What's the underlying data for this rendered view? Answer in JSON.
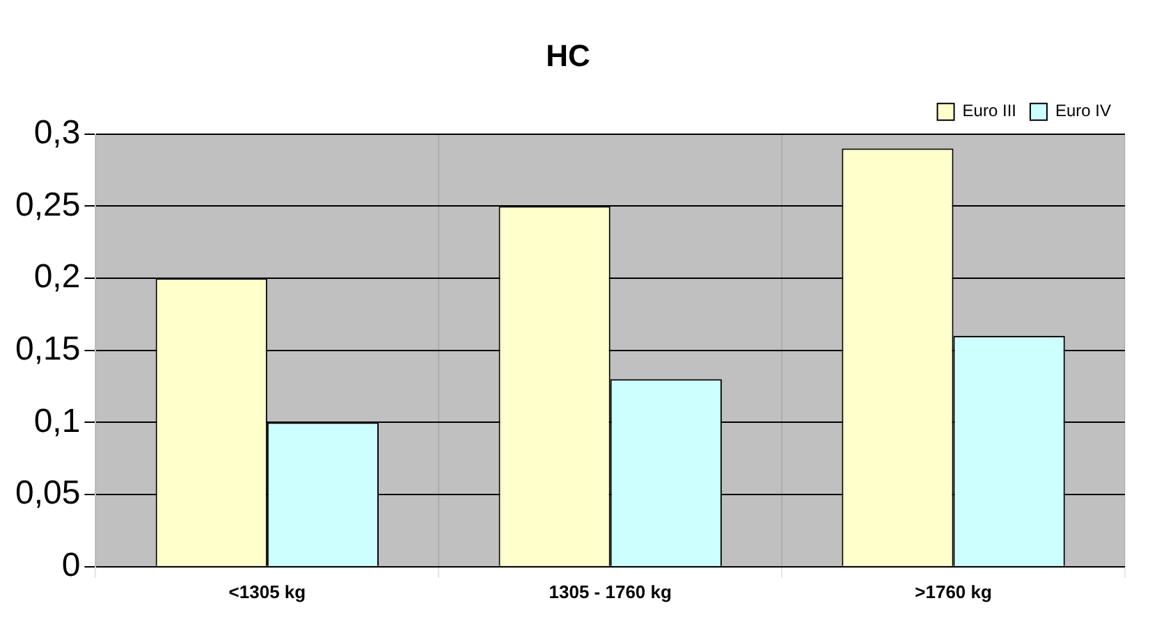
{
  "chart_data": {
    "type": "bar",
    "title": "HC",
    "categories": [
      "<1305 kg",
      "1305 - 1760 kg",
      ">1760 kg"
    ],
    "series": [
      {
        "name": "Euro III",
        "color": "#ffffcc",
        "values": [
          0.2,
          0.25,
          0.29
        ]
      },
      {
        "name": "Euro IV",
        "color": "#ccffff",
        "values": [
          0.1,
          0.13,
          0.16
        ]
      }
    ],
    "ylim": [
      0,
      0.3
    ],
    "yticks": [
      {
        "value": 0,
        "label": "0"
      },
      {
        "value": 0.05,
        "label": "0,05"
      },
      {
        "value": 0.1,
        "label": "0,1"
      },
      {
        "value": 0.15,
        "label": "0,15"
      },
      {
        "value": 0.2,
        "label": "0,2"
      },
      {
        "value": 0.25,
        "label": "0,25"
      },
      {
        "value": 0.3,
        "label": "0,3"
      }
    ],
    "grid": true,
    "legend": "top right"
  }
}
